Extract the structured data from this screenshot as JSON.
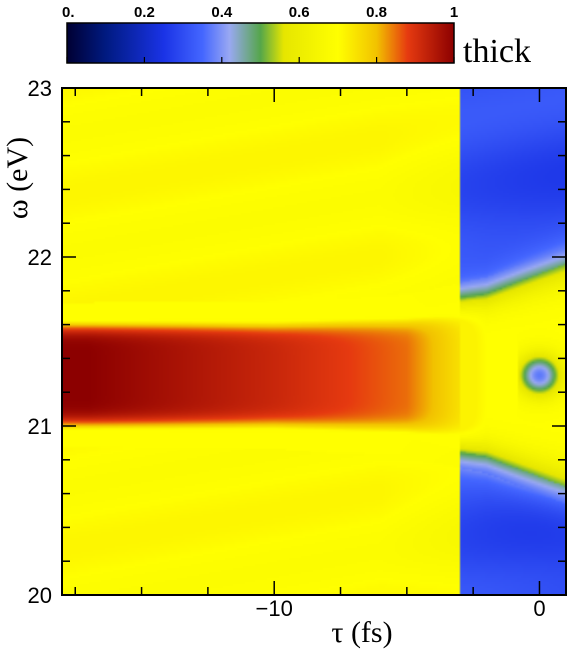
{
  "chart_data": {
    "type": "heatmap",
    "title": "",
    "panel_label": "thick",
    "xlabel": "τ (fs)",
    "ylabel": "ω (eV)",
    "xlim": [
      -18,
      1
    ],
    "ylim": [
      20,
      23
    ],
    "x_ticks": [
      -10,
      0
    ],
    "x_tick_labels": [
      "−10",
      "0"
    ],
    "y_ticks": [
      20,
      21,
      22,
      23
    ],
    "y_tick_labels": [
      "20",
      "21",
      "22",
      "23"
    ],
    "colorbar": {
      "range": [
        0,
        1
      ],
      "tick_labels": [
        "0.",
        "0.2",
        "0.4",
        "0.6",
        "0.8",
        "1"
      ],
      "ticks": [
        0,
        0.2,
        0.4,
        0.6,
        0.8,
        1
      ],
      "colormap": [
        {
          "v": 0.0,
          "color": "#000033"
        },
        {
          "v": 0.1,
          "color": "#001a80"
        },
        {
          "v": 0.25,
          "color": "#1a33e6"
        },
        {
          "v": 0.35,
          "color": "#4466ff"
        },
        {
          "v": 0.42,
          "color": "#99a8f2"
        },
        {
          "v": 0.5,
          "color": "#55a64a"
        },
        {
          "v": 0.56,
          "color": "#e6e600"
        },
        {
          "v": 0.7,
          "color": "#ffff00"
        },
        {
          "v": 0.8,
          "color": "#f2c200"
        },
        {
          "v": 0.88,
          "color": "#e63a10"
        },
        {
          "v": 1.0,
          "color": "#8c0000"
        }
      ]
    },
    "grid": false,
    "description_points": [
      {
        "tau": -17,
        "omega_center": 21.3,
        "omega_halfwidth": 0.33,
        "peak": 1.0
      },
      {
        "tau": -10,
        "omega_center": 21.3,
        "omega_halfwidth": 0.34,
        "peak": 0.92
      },
      {
        "tau": -5,
        "omega_center": 21.3,
        "omega_halfwidth": 0.38,
        "peak": 0.85
      },
      {
        "tau": -2,
        "omega_center": 21.3,
        "omega_halfwidth": 0.48,
        "peak": 0.7
      },
      {
        "tau": 0,
        "omega_center": 21.3,
        "omega_halfwidth": 0.6,
        "peak": 0.7
      }
    ]
  }
}
